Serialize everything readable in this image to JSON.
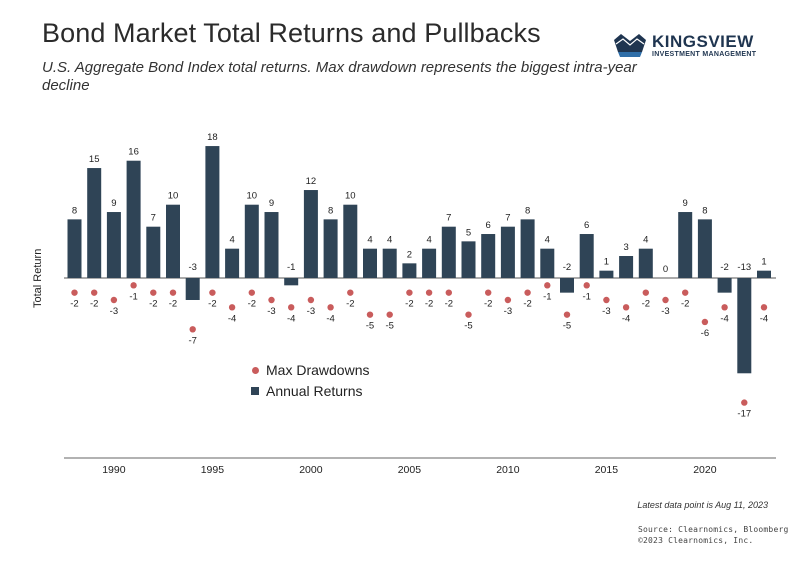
{
  "header": {
    "title": "Bond Market Total Returns and Pullbacks",
    "subtitle": "U.S. Aggregate Bond Index total returns. Max drawdown represents the biggest intra-year decline"
  },
  "logo": {
    "icon": "crown-icon",
    "name": "KINGSVIEW",
    "tagline": "INVESTMENT MANAGEMENT",
    "color": "#1f3550"
  },
  "legend": {
    "drawdowns_label": "Max Drawdowns",
    "returns_label": "Annual Returns"
  },
  "footer": {
    "note": "Latest data point is Aug 11, 2023",
    "source_line1": "Source: Clearnomics, Bloomberg",
    "source_line2": "©2023 Clearnomics, Inc."
  },
  "chart_data": {
    "type": "bar",
    "title": "Bond Market Total Returns and Pullbacks",
    "ylabel": "Total Return",
    "xlabel": "",
    "x": [
      1988,
      1989,
      1990,
      1991,
      1992,
      1993,
      1994,
      1995,
      1996,
      1997,
      1998,
      1999,
      2000,
      2001,
      2002,
      2003,
      2004,
      2005,
      2006,
      2007,
      2008,
      2009,
      2010,
      2011,
      2012,
      2013,
      2014,
      2015,
      2016,
      2017,
      2018,
      2019,
      2020,
      2021,
      2022,
      2023
    ],
    "x_tick_labels": [
      "1990",
      "1995",
      "2000",
      "2005",
      "2010",
      "2015",
      "2020"
    ],
    "x_tick_values": [
      1990,
      1995,
      2000,
      2005,
      2010,
      2015,
      2020
    ],
    "ylim": [
      -21,
      19
    ],
    "grid": false,
    "series": [
      {
        "name": "Annual Returns",
        "kind": "bar",
        "color": "#2f4456",
        "values": [
          8,
          15,
          9,
          16,
          7,
          10,
          -3,
          18,
          4,
          10,
          9,
          -1,
          12,
          8,
          10,
          4,
          4,
          2,
          4,
          7,
          5,
          6,
          7,
          8,
          4,
          -2,
          6,
          1,
          3,
          4,
          0,
          9,
          8,
          -2,
          -13,
          1
        ]
      },
      {
        "name": "Max Drawdowns",
        "kind": "scatter",
        "color": "#c95c5c",
        "values": [
          -2,
          -2,
          -3,
          -1,
          -2,
          -2,
          -7,
          -2,
          -4,
          -2,
          -3,
          -4,
          -3,
          -4,
          -2,
          -5,
          -5,
          -2,
          -2,
          -2,
          -5,
          -2,
          -3,
          -2,
          -1,
          -5,
          -1,
          -3,
          -4,
          -2,
          -3,
          -2,
          -6,
          -4,
          -17,
          -4
        ]
      }
    ]
  }
}
